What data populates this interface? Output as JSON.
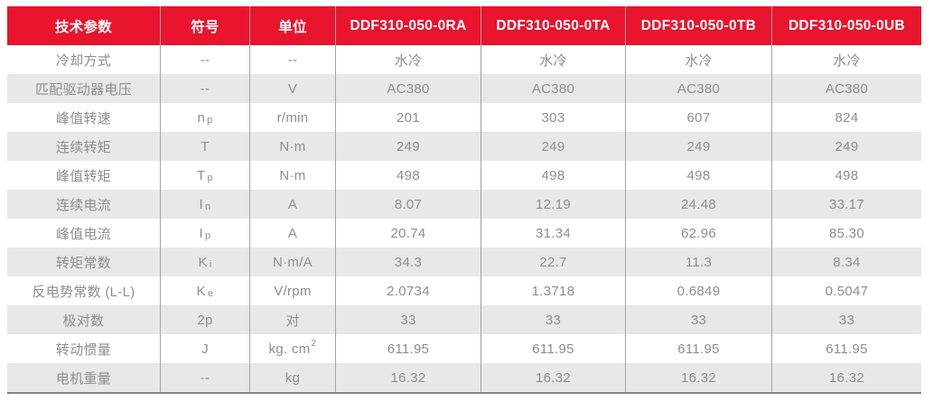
{
  "colors": {
    "header_bg": "#e9142d",
    "header_text": "#ffffff",
    "row_bg": "#ffffff",
    "row_alt_bg": "#e8e8e8",
    "body_text": "#8b8e92",
    "divider": "#a3a3a3",
    "bottom_border": "#848484"
  },
  "table": {
    "headers": [
      "技术参数",
      "符号",
      "单位",
      "DDF310-050-0RA",
      "DDF310-050-0TA",
      "DDF310-050-0TB",
      "DDF310-050-0UB"
    ],
    "rows": [
      {
        "param": "冷却方式",
        "symbol": {
          "main": "--",
          "sub": ""
        },
        "unit": {
          "text": "--",
          "sup": ""
        },
        "values": [
          "水冷",
          "水冷",
          "水冷",
          "水冷"
        ]
      },
      {
        "param": "匹配驱动器电压",
        "symbol": {
          "main": "--",
          "sub": ""
        },
        "unit": {
          "text": "V",
          "sup": ""
        },
        "values": [
          "AC380",
          "AC380",
          "AC380",
          "AC380"
        ]
      },
      {
        "param": "峰值转速",
        "symbol": {
          "main": "n",
          "sub": "p"
        },
        "unit": {
          "text": "r/min",
          "sup": ""
        },
        "values": [
          "201",
          "303",
          "607",
          "824"
        ]
      },
      {
        "param": "连续转矩",
        "symbol": {
          "main": "T",
          "sub": ""
        },
        "unit": {
          "text": "N·m",
          "sup": ""
        },
        "values": [
          "249",
          "249",
          "249",
          "249"
        ]
      },
      {
        "param": "峰值转矩",
        "symbol": {
          "main": "T",
          "sub": "p"
        },
        "unit": {
          "text": "N·m",
          "sup": ""
        },
        "values": [
          "498",
          "498",
          "498",
          "498"
        ]
      },
      {
        "param": "连续电流",
        "symbol": {
          "main": "I",
          "sub": "n"
        },
        "unit": {
          "text": "A",
          "sup": ""
        },
        "values": [
          "8.07",
          "12.19",
          "24.48",
          "33.17"
        ]
      },
      {
        "param": "峰值电流",
        "symbol": {
          "main": "I",
          "sub": "p"
        },
        "unit": {
          "text": "A",
          "sup": ""
        },
        "values": [
          "20.74",
          "31.34",
          "62.96",
          "85.30"
        ]
      },
      {
        "param": "转矩常数",
        "symbol": {
          "main": "K",
          "sub": "i"
        },
        "unit": {
          "text": "N·m/A",
          "sup": ""
        },
        "values": [
          "34.3",
          "22.7",
          "11.3",
          "8.34"
        ]
      },
      {
        "param": "反电势常数 (L-L)",
        "symbol": {
          "main": "K",
          "sub": "e"
        },
        "unit": {
          "text": "V/rpm",
          "sup": ""
        },
        "values": [
          "2.0734",
          "1.3718",
          "0.6849",
          "0.5047"
        ]
      },
      {
        "param": "极对数",
        "symbol": {
          "main": "2p",
          "sub": ""
        },
        "unit": {
          "text": "对",
          "sup": ""
        },
        "values": [
          "33",
          "33",
          "33",
          "33"
        ]
      },
      {
        "param": "转动惯量",
        "symbol": {
          "main": "J",
          "sub": ""
        },
        "unit": {
          "text": "kg. cm",
          "sup": "2"
        },
        "values": [
          "611.95",
          "611.95",
          "611.95",
          "611.95"
        ]
      },
      {
        "param": "电机重量",
        "symbol": {
          "main": "--",
          "sub": ""
        },
        "unit": {
          "text": "kg",
          "sup": ""
        },
        "values": [
          "16.32",
          "16.32",
          "16.32",
          "16.32"
        ]
      }
    ]
  }
}
